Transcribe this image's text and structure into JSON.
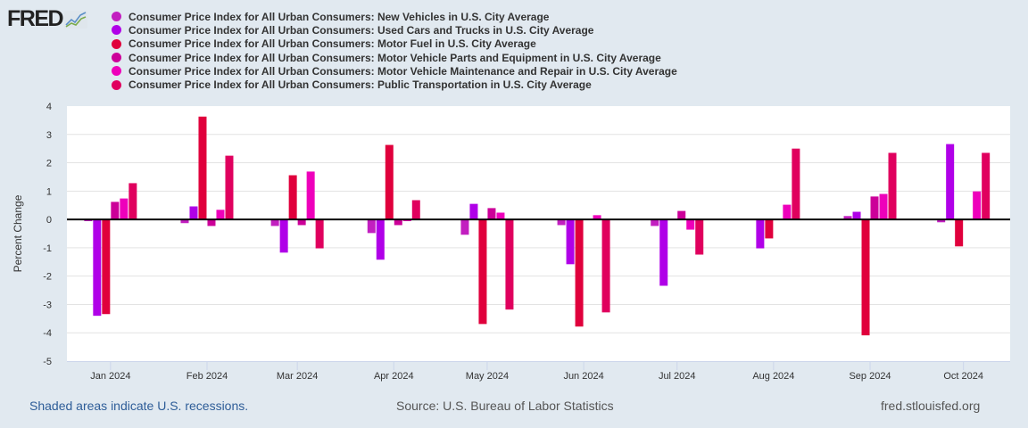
{
  "logo": {
    "text": "FRED"
  },
  "chart_data": {
    "type": "bar",
    "title": "",
    "xlabel": "",
    "ylabel": "Percent Change",
    "ylim": [
      -5,
      4
    ],
    "yticks": [
      4,
      3,
      2,
      1,
      0,
      -1,
      -2,
      -3,
      -4,
      -5
    ],
    "xlim": [
      "2023-12-18",
      "2024-10-16"
    ],
    "grid": true,
    "legend_position": "top",
    "categories": [
      "Jan 2024",
      "Feb 2024",
      "Mar 2024",
      "Apr 2024",
      "May 2024",
      "Jun 2024",
      "Jul 2024",
      "Aug 2024",
      "Sep 2024",
      "Oct 2024"
    ],
    "dates": [
      "2024-01-01",
      "2024-02-01",
      "2024-03-01",
      "2024-04-01",
      "2024-05-01",
      "2024-06-01",
      "2024-07-01",
      "2024-08-01",
      "2024-09-01",
      "2024-10-01"
    ],
    "series": [
      {
        "name": "Consumer Price Index for All Urban Consumers: New Vehicles in U.S. City Average",
        "color": "#c21fc0",
        "values": [
          -0.06,
          -0.13,
          -0.23,
          -0.48,
          -0.54,
          -0.2,
          -0.23,
          0.0,
          0.12,
          -0.1
        ]
      },
      {
        "name": "Consumer Price Index for All Urban Consumers: Used Cars and Trucks in U.S. City Average",
        "color": "#b000e8",
        "values": [
          -3.4,
          0.46,
          -1.17,
          -1.42,
          0.55,
          -1.58,
          -2.34,
          -1.02,
          0.27,
          2.66
        ]
      },
      {
        "name": "Consumer Price Index for All Urban Consumers: Motor Fuel in U.S. City Average",
        "color": "#e0003c",
        "values": [
          -3.34,
          3.63,
          1.56,
          2.63,
          -3.69,
          -3.78,
          0.0,
          -0.67,
          -4.09,
          -0.95
        ]
      },
      {
        "name": "Consumer Price Index for All Urban Consumers: Motor Vehicle Parts and Equipment in U.S. City Average",
        "color": "#cc0099",
        "values": [
          0.62,
          -0.23,
          -0.2,
          -0.2,
          0.4,
          0.0,
          0.3,
          0.0,
          0.81,
          0.0
        ]
      },
      {
        "name": "Consumer Price Index for All Urban Consumers: Motor Vehicle Maintenance and Repair in U.S. City Average",
        "color": "#ee00bb",
        "values": [
          0.74,
          0.34,
          1.69,
          -0.06,
          0.24,
          0.15,
          -0.36,
          0.52,
          0.9,
          0.99
        ]
      },
      {
        "name": "Consumer Price Index for All Urban Consumers: Public Transportation in U.S. City Average",
        "color": "#e0005e",
        "values": [
          1.28,
          2.25,
          -1.02,
          0.68,
          -3.18,
          -3.28,
          -1.24,
          2.5,
          2.35,
          2.35
        ]
      }
    ]
  },
  "footer": {
    "recession_note": "Shaded areas indicate U.S. recessions.",
    "source": "Source: U.S. Bureau of Labor Statistics",
    "site": "fred.stlouisfed.org"
  }
}
